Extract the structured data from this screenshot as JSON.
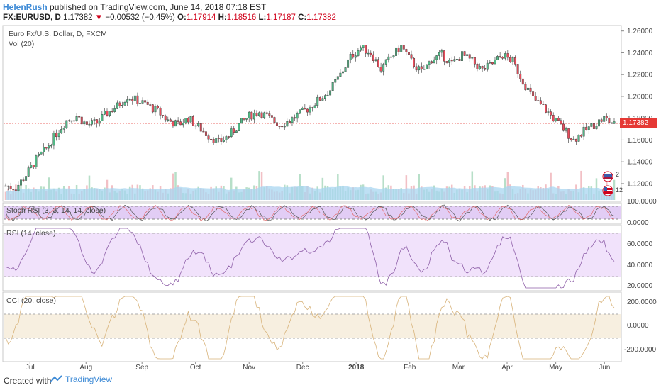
{
  "header": {
    "author": "HelenRush",
    "published": " published on TradingView.com, June 14, 2018 07:18 EST",
    "symbol": "FX:EURUSD, D",
    "last": "1.17382",
    "change_arrow": "▼",
    "change": "−0.00532 (−0.45%)",
    "o_label": "O:",
    "o_value": "1.17914",
    "h_label": "H:",
    "h_value": "1.18516",
    "l_label": "L:",
    "l_value": "1.17187",
    "c_label": "C:",
    "c_value": "1.17382"
  },
  "main_pane": {
    "title": "Euro Fx/U.S. Dollar, D, FXCM",
    "vol_label": "Vol (20)",
    "current_price_tag": "1.17382",
    "badge_top": "2",
    "badge_bottom": "12"
  },
  "stoch_pane": {
    "label": "Stoch RSI (3, 3, 14, 14, close)",
    "ticks": [
      "100.0000",
      "0.0000"
    ]
  },
  "rsi_pane": {
    "label": "RSI (14, close)",
    "ticks": [
      "60.0000",
      "40.0000",
      "20.0000"
    ]
  },
  "cci_pane": {
    "label": "CCI (20, close)",
    "ticks": [
      "200.0000",
      "0.0000",
      "-200.0000"
    ]
  },
  "footer": {
    "created_with": "Created with",
    "brand": "TradingView"
  },
  "colors": {
    "up": "#53b987",
    "down": "#eb4d5c",
    "vol_ma": "#a8d6f0",
    "stoch_band": "#e2cdf5",
    "rsi_band": "#f1e2fb",
    "cci_band": "#f7efe0",
    "link": "#3d8ad6"
  },
  "chart_data": {
    "type": "candlestick",
    "symbol": "EURUSD",
    "interval": "D",
    "x_labels": [
      "Jul",
      "Aug",
      "Sep",
      "Oct",
      "Nov",
      "Dec",
      "2018",
      "Feb",
      "Mar",
      "Apr",
      "May",
      "Jun"
    ],
    "y_ticks": [
      "1.26000",
      "1.24000",
      "1.22000",
      "1.20000",
      "1.18000",
      "1.16000",
      "1.14000",
      "1.12000"
    ],
    "ylim": [
      1.105,
      1.265
    ],
    "close_path": [
      [
        0,
        1.118
      ],
      [
        4,
        1.116
      ],
      [
        8,
        1.128
      ],
      [
        12,
        1.142
      ],
      [
        16,
        1.152
      ],
      [
        20,
        1.166
      ],
      [
        24,
        1.178
      ],
      [
        28,
        1.182
      ],
      [
        32,
        1.174
      ],
      [
        36,
        1.176
      ],
      [
        40,
        1.185
      ],
      [
        44,
        1.191
      ],
      [
        48,
        1.2
      ],
      [
        52,
        1.196
      ],
      [
        56,
        1.192
      ],
      [
        60,
        1.186
      ],
      [
        64,
        1.178
      ],
      [
        68,
        1.174
      ],
      [
        72,
        1.18
      ],
      [
        76,
        1.172
      ],
      [
        80,
        1.164
      ],
      [
        84,
        1.158
      ],
      [
        88,
        1.164
      ],
      [
        92,
        1.174
      ],
      [
        96,
        1.182
      ],
      [
        100,
        1.186
      ],
      [
        104,
        1.18
      ],
      [
        108,
        1.174
      ],
      [
        112,
        1.178
      ],
      [
        116,
        1.184
      ],
      [
        120,
        1.19
      ],
      [
        124,
        1.198
      ],
      [
        128,
        1.206
      ],
      [
        132,
        1.22
      ],
      [
        136,
        1.236
      ],
      [
        140,
        1.245
      ],
      [
        144,
        1.24
      ],
      [
        148,
        1.225
      ],
      [
        152,
        1.236
      ],
      [
        156,
        1.246
      ],
      [
        160,
        1.232
      ],
      [
        164,
        1.222
      ],
      [
        168,
        1.234
      ],
      [
        172,
        1.238
      ],
      [
        176,
        1.23
      ],
      [
        180,
        1.238
      ],
      [
        184,
        1.232
      ],
      [
        188,
        1.224
      ],
      [
        192,
        1.23
      ],
      [
        196,
        1.238
      ],
      [
        200,
        1.232
      ],
      [
        204,
        1.214
      ],
      [
        208,
        1.198
      ],
      [
        212,
        1.19
      ],
      [
        216,
        1.18
      ],
      [
        220,
        1.17
      ],
      [
        224,
        1.16
      ],
      [
        228,
        1.168
      ],
      [
        232,
        1.174
      ],
      [
        236,
        1.18
      ],
      [
        240,
        1.174
      ]
    ]
  }
}
